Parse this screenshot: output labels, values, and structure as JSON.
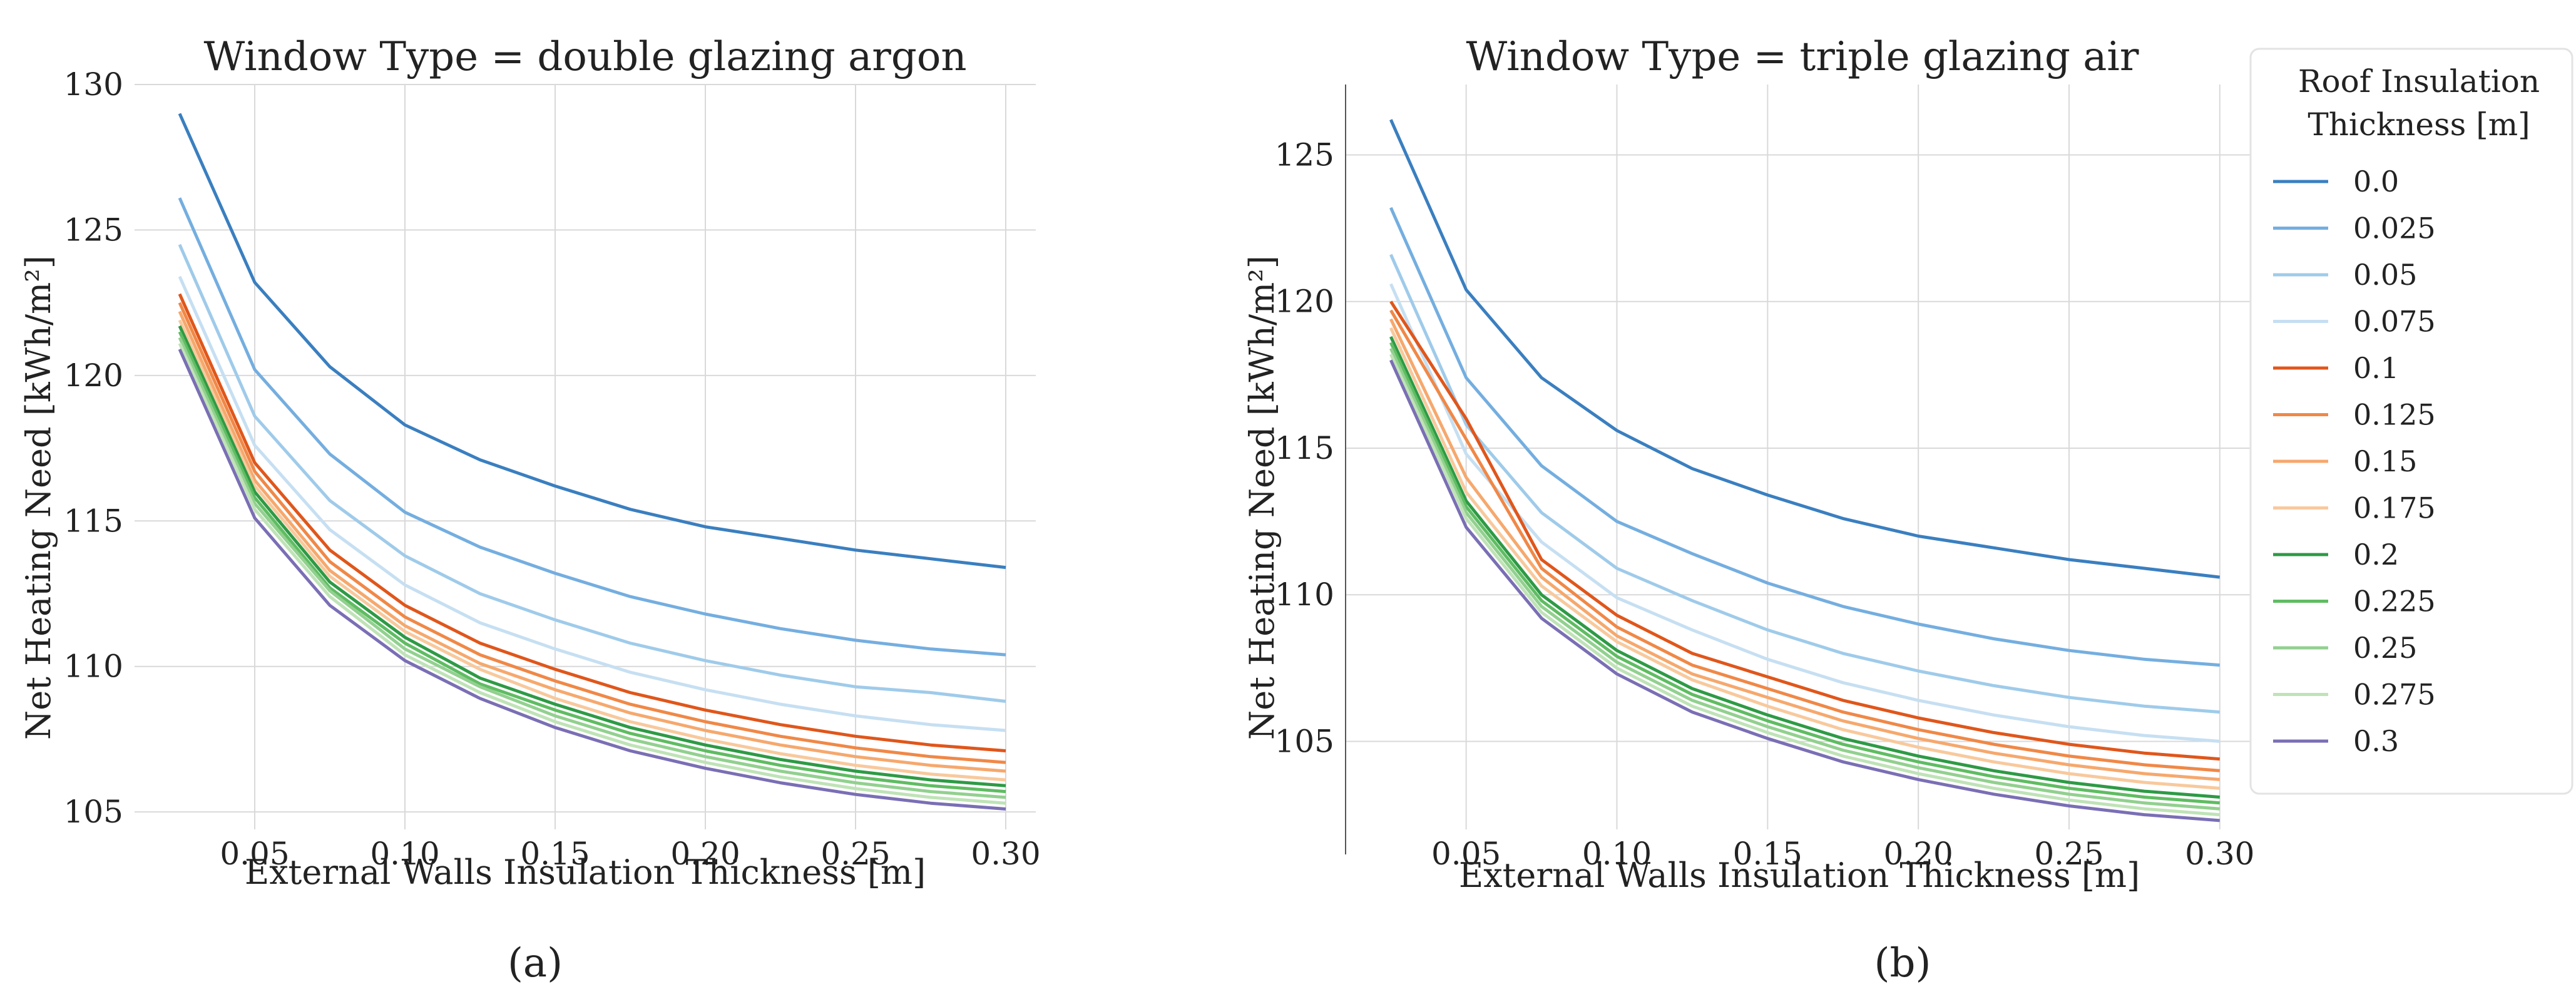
{
  "chart_data": [
    {
      "type": "line",
      "panel_label": "(a)",
      "title": "Window Type = double glazing argon",
      "xlabel": "External Walls Insulation Thickness [m]",
      "ylabel": "Net Heating Need [kWh/m²]",
      "xlim": [
        0.01,
        0.31
      ],
      "ylim": [
        104.4,
        130.0
      ],
      "xticks": [
        0.05,
        0.1,
        0.15,
        0.2,
        0.25,
        0.3
      ],
      "xtick_labels": [
        "0.05",
        "0.10",
        "0.15",
        "0.20",
        "0.25",
        "0.30"
      ],
      "yticks": [
        105,
        110,
        115,
        120,
        125,
        130
      ],
      "ytick_labels": [
        "105",
        "110",
        "115",
        "120",
        "125",
        "130"
      ],
      "x": [
        0.025,
        0.05,
        0.075,
        0.1,
        0.125,
        0.15,
        0.175,
        0.2,
        0.225,
        0.25,
        0.275,
        0.3
      ],
      "series": [
        {
          "name": "0.0",
          "color": "#3a7fc0",
          "values": [
            129.0,
            123.2,
            120.3,
            118.3,
            117.1,
            116.2,
            115.4,
            114.8,
            114.4,
            114.0,
            113.7,
            113.4
          ]
        },
        {
          "name": "0.025",
          "color": "#74aee0",
          "values": [
            126.1,
            120.2,
            117.3,
            115.3,
            114.1,
            113.2,
            112.4,
            111.8,
            111.3,
            110.9,
            110.6,
            110.4
          ]
        },
        {
          "name": "0.05",
          "color": "#9fcbea",
          "values": [
            124.5,
            118.6,
            115.7,
            113.8,
            112.5,
            111.6,
            110.8,
            110.2,
            109.7,
            109.3,
            109.1,
            108.8
          ]
        },
        {
          "name": "0.075",
          "color": "#c6dff2",
          "values": [
            123.4,
            117.6,
            114.7,
            112.8,
            111.5,
            110.6,
            109.8,
            109.2,
            108.7,
            108.3,
            108.0,
            107.8
          ]
        },
        {
          "name": "0.1",
          "color": "#e0561b",
          "values": [
            122.8,
            117.0,
            114.0,
            112.1,
            110.8,
            109.9,
            109.1,
            108.5,
            108.0,
            107.6,
            107.3,
            107.1
          ]
        },
        {
          "name": "0.125",
          "color": "#f08847",
          "values": [
            122.5,
            116.7,
            113.6,
            111.7,
            110.4,
            109.5,
            108.7,
            108.1,
            107.6,
            107.2,
            106.9,
            106.7
          ]
        },
        {
          "name": "0.15",
          "color": "#f6a86d",
          "values": [
            122.2,
            116.4,
            113.3,
            111.4,
            110.1,
            109.2,
            108.4,
            107.8,
            107.3,
            106.9,
            106.6,
            106.4
          ]
        },
        {
          "name": "0.175",
          "color": "#f8c99d",
          "values": [
            121.9,
            116.2,
            113.1,
            111.2,
            109.9,
            108.9,
            108.1,
            107.5,
            107.0,
            106.6,
            106.3,
            106.1
          ]
        },
        {
          "name": "0.2",
          "color": "#2e9a45",
          "values": [
            121.7,
            116.0,
            112.9,
            111.0,
            109.6,
            108.7,
            107.9,
            107.3,
            106.8,
            106.4,
            106.1,
            105.9
          ]
        },
        {
          "name": "0.225",
          "color": "#5fbc62",
          "values": [
            121.5,
            115.8,
            112.7,
            110.8,
            109.4,
            108.5,
            107.7,
            107.1,
            106.6,
            106.2,
            105.9,
            105.7
          ]
        },
        {
          "name": "0.25",
          "color": "#92d08f",
          "values": [
            121.3,
            115.6,
            112.6,
            110.6,
            109.3,
            108.3,
            107.5,
            106.9,
            106.4,
            106.0,
            105.7,
            105.5
          ]
        },
        {
          "name": "0.275",
          "color": "#bfe3b7",
          "values": [
            121.1,
            115.4,
            112.4,
            110.4,
            109.1,
            108.1,
            107.3,
            106.7,
            106.2,
            105.8,
            105.5,
            105.3
          ]
        },
        {
          "name": "0.3",
          "color": "#7a6fb5",
          "values": [
            120.9,
            115.1,
            112.1,
            110.2,
            108.9,
            107.9,
            107.1,
            106.5,
            106.0,
            105.6,
            105.3,
            105.1
          ]
        }
      ]
    },
    {
      "type": "line",
      "panel_label": "(b)",
      "title": "Window Type = triple glazing air",
      "xlabel": "External Walls Insulation Thickness [m]",
      "ylabel": "Net Heating Need [kWh/m²]",
      "xlim": [
        0.01,
        0.31
      ],
      "ylim": [
        102.0,
        127.4
      ],
      "xticks": [
        0.05,
        0.1,
        0.15,
        0.2,
        0.25,
        0.3
      ],
      "xtick_labels": [
        "0.05",
        "0.10",
        "0.15",
        "0.20",
        "0.25",
        "0.30"
      ],
      "yticks": [
        105,
        110,
        115,
        120,
        125
      ],
      "ytick_labels": [
        "105",
        "110",
        "115",
        "120",
        "125"
      ],
      "x": [
        0.025,
        0.05,
        0.075,
        0.1,
        0.125,
        0.15,
        0.175,
        0.2,
        0.225,
        0.25,
        0.275,
        0.3
      ],
      "series": [
        {
          "name": "0.0",
          "color": "#3a7fc0",
          "values": [
            126.2,
            120.4,
            117.4,
            115.6,
            114.3,
            113.4,
            112.6,
            112.0,
            111.6,
            111.2,
            110.9,
            110.6
          ]
        },
        {
          "name": "0.025",
          "color": "#74aee0",
          "values": [
            123.2,
            117.4,
            114.4,
            112.5,
            111.4,
            110.4,
            109.6,
            109.0,
            108.5,
            108.1,
            107.8,
            107.6
          ]
        },
        {
          "name": "0.05",
          "color": "#9fcbea",
          "values": [
            121.6,
            115.8,
            112.8,
            110.9,
            109.8,
            108.8,
            108.0,
            107.4,
            106.9,
            106.5,
            106.2,
            106.0
          ]
        },
        {
          "name": "0.075",
          "color": "#c6dff2",
          "values": [
            120.6,
            114.8,
            111.8,
            109.9,
            108.8,
            107.8,
            107.0,
            106.4,
            105.9,
            105.5,
            105.2,
            105.0
          ]
        },
        {
          "name": "0.1",
          "color": "#e0561b",
          "values": [
            120.0,
            116.0,
            111.2,
            109.3,
            108.0,
            107.2,
            106.4,
            105.8,
            105.3,
            104.9,
            104.6,
            104.4
          ]
        },
        {
          "name": "0.125",
          "color": "#f08847",
          "values": [
            119.7,
            115.3,
            110.9,
            108.9,
            107.6,
            106.8,
            106.0,
            105.4,
            104.9,
            104.5,
            104.2,
            104.0
          ]
        },
        {
          "name": "0.15",
          "color": "#f6a86d",
          "values": [
            119.4,
            114.0,
            110.6,
            108.6,
            107.3,
            106.5,
            105.7,
            105.1,
            104.6,
            104.2,
            103.9,
            103.7
          ]
        },
        {
          "name": "0.175",
          "color": "#f8c99d",
          "values": [
            119.1,
            113.5,
            110.3,
            108.4,
            107.1,
            106.2,
            105.4,
            104.8,
            104.3,
            103.9,
            103.6,
            103.4
          ]
        },
        {
          "name": "0.2",
          "color": "#2e9a45",
          "values": [
            118.8,
            113.2,
            110.0,
            108.1,
            106.8,
            105.9,
            105.1,
            104.5,
            104.0,
            103.6,
            103.3,
            103.1
          ]
        },
        {
          "name": "0.225",
          "color": "#5fbc62",
          "values": [
            118.6,
            113.0,
            109.8,
            107.9,
            106.6,
            105.7,
            104.9,
            104.3,
            103.8,
            103.4,
            103.1,
            102.9
          ]
        },
        {
          "name": "0.25",
          "color": "#92d08f",
          "values": [
            118.4,
            112.8,
            109.6,
            107.7,
            106.4,
            105.5,
            104.7,
            104.1,
            103.6,
            103.2,
            102.9,
            102.7
          ]
        },
        {
          "name": "0.275",
          "color": "#bfe3b7",
          "values": [
            118.2,
            112.6,
            109.4,
            107.5,
            106.2,
            105.3,
            104.5,
            103.9,
            103.4,
            103.0,
            102.7,
            102.5
          ]
        },
        {
          "name": "0.3",
          "color": "#7a6fb5",
          "values": [
            118.0,
            112.3,
            109.2,
            107.3,
            106.0,
            105.1,
            104.3,
            103.7,
            103.2,
            102.8,
            102.5,
            102.3
          ]
        }
      ]
    }
  ],
  "legend": {
    "title_lines": [
      "Roof Insulation",
      "Thickness [m]"
    ],
    "entries": [
      "0.0",
      "0.025",
      "0.05",
      "0.075",
      "0.1",
      "0.125",
      "0.15",
      "0.175",
      "0.2",
      "0.225",
      "0.25",
      "0.275",
      "0.3"
    ],
    "colors": [
      "#3a7fc0",
      "#74aee0",
      "#9fcbea",
      "#c6dff2",
      "#e0561b",
      "#f08847",
      "#f6a86d",
      "#f8c99d",
      "#2e9a45",
      "#5fbc62",
      "#92d08f",
      "#bfe3b7",
      "#7a6fb5"
    ]
  }
}
